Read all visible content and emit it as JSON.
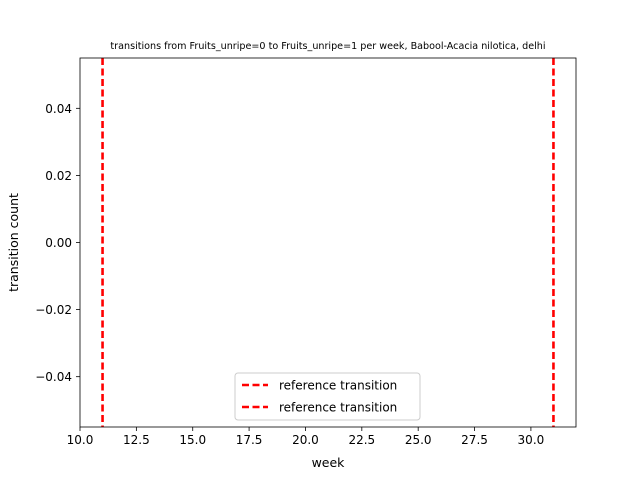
{
  "chart_data": {
    "type": "line",
    "title": "transitions from Fruits_unripe=0 to Fruits_unripe=1 per week, Babool-Acacia nilotica, delhi",
    "xlabel": "week",
    "ylabel": "transition count",
    "xlim": [
      10.0,
      32.0
    ],
    "ylim": [
      -0.055,
      0.055
    ],
    "x_ticks": [
      "10.0",
      "12.5",
      "15.0",
      "17.5",
      "20.0",
      "22.5",
      "25.0",
      "27.5",
      "30.0"
    ],
    "y_ticks": [
      "0.04",
      "0.02",
      "0.00",
      "−0.02",
      "−0.04"
    ],
    "grid": false,
    "legend_position": "bottom-center",
    "series": [],
    "reference_lines": [
      {
        "name": "reference transition",
        "x": 11,
        "color": "#ff0000",
        "style": "dashed"
      },
      {
        "name": "reference transition",
        "x": 31,
        "color": "#ff0000",
        "style": "dashed"
      }
    ]
  }
}
